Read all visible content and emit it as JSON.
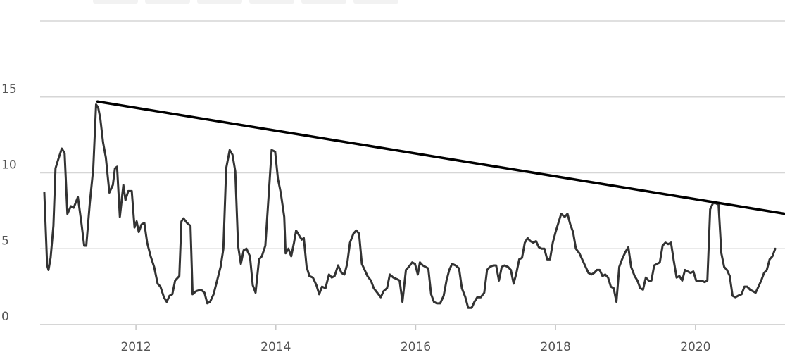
{
  "chart_data": {
    "type": "line",
    "x": [
      2010.69,
      2010.73,
      2010.75,
      2010.78,
      2010.82,
      2010.85,
      2010.89,
      2010.94,
      2010.98,
      2011.02,
      2011.07,
      2011.11,
      2011.17,
      2011.22,
      2011.26,
      2011.29,
      2011.34,
      2011.39,
      2011.43,
      2011.46,
      2011.49,
      2011.53,
      2011.57,
      2011.62,
      2011.67,
      2011.7,
      2011.73,
      2011.77,
      2011.82,
      2011.85,
      2011.89,
      2011.94,
      2011.98,
      2012.01,
      2012.04,
      2012.08,
      2012.12,
      2012.16,
      2012.21,
      2012.26,
      2012.31,
      2012.35,
      2012.4,
      2012.44,
      2012.48,
      2012.52,
      2012.56,
      2012.62,
      2012.65,
      2012.68,
      2012.73,
      2012.78,
      2012.81,
      2012.86,
      2012.93,
      2012.98,
      2013.02,
      2013.06,
      2013.11,
      2013.16,
      2013.21,
      2013.25,
      2013.29,
      2013.34,
      2013.38,
      2013.42,
      2013.46,
      2013.5,
      2013.54,
      2013.58,
      2013.63,
      2013.67,
      2013.71,
      2013.76,
      2013.8,
      2013.85,
      2013.89,
      2013.94,
      2013.99,
      2014.03,
      2014.07,
      2014.12,
      2014.14,
      2014.18,
      2014.22,
      2014.26,
      2014.29,
      2014.33,
      2014.37,
      2014.4,
      2014.44,
      2014.48,
      2014.53,
      2014.58,
      2014.62,
      2014.66,
      2014.71,
      2014.76,
      2014.8,
      2014.84,
      2014.89,
      2014.94,
      2014.98,
      2015.02,
      2015.06,
      2015.11,
      2015.15,
      2015.19,
      2015.23,
      2015.27,
      2015.31,
      2015.36,
      2015.4,
      2015.45,
      2015.5,
      2015.54,
      2015.59,
      2015.63,
      2015.68,
      2015.73,
      2015.77,
      2015.81,
      2015.86,
      2015.9,
      2015.95,
      2015.99,
      2016.03,
      2016.06,
      2016.1,
      2016.14,
      2016.18,
      2016.22,
      2016.26,
      2016.3,
      2016.35,
      2016.4,
      2016.44,
      2016.48,
      2016.52,
      2016.57,
      2016.62,
      2016.66,
      2016.71,
      2016.75,
      2016.8,
      2016.84,
      2016.88,
      2016.93,
      2016.98,
      2017.02,
      2017.06,
      2017.11,
      2017.15,
      2017.19,
      2017.23,
      2017.27,
      2017.32,
      2017.36,
      2017.4,
      2017.44,
      2017.48,
      2017.52,
      2017.56,
      2017.6,
      2017.64,
      2017.68,
      2017.72,
      2017.76,
      2017.8,
      2017.84,
      2017.88,
      2017.92,
      2017.96,
      2018.0,
      2018.04,
      2018.08,
      2018.13,
      2018.17,
      2018.21,
      2018.25,
      2018.29,
      2018.34,
      2018.38,
      2018.42,
      2018.47,
      2018.51,
      2018.55,
      2018.59,
      2018.63,
      2018.67,
      2018.71,
      2018.75,
      2018.79,
      2018.83,
      2018.87,
      2018.91,
      2018.95,
      2019.0,
      2019.04,
      2019.08,
      2019.13,
      2019.17,
      2019.21,
      2019.25,
      2019.29,
      2019.33,
      2019.37,
      2019.41,
      2019.45,
      2019.49,
      2019.53,
      2019.57,
      2019.61,
      2019.65,
      2019.69,
      2019.73,
      2019.77,
      2019.81,
      2019.85,
      2019.89,
      2019.93,
      2019.97,
      2020.01,
      2020.05,
      2020.09,
      2020.13,
      2020.17,
      2020.21,
      2020.25,
      2020.29,
      2020.33,
      2020.37,
      2020.41,
      2020.45,
      2020.49,
      2020.53,
      2020.57,
      2020.61,
      2020.66,
      2020.7,
      2020.74,
      2020.78,
      2020.82,
      2020.86,
      2020.9,
      2020.94,
      2020.98,
      2021.02,
      2021.06,
      2021.1,
      2021.14
    ],
    "values": [
      8.7,
      3.9,
      3.6,
      4.4,
      6.5,
      10.3,
      10.9,
      11.6,
      11.3,
      7.3,
      7.8,
      7.7,
      8.4,
      6.7,
      5.2,
      5.2,
      8.0,
      10.3,
      14.5,
      14.3,
      13.6,
      12.0,
      11.0,
      8.7,
      9.2,
      10.3,
      10.4,
      7.1,
      9.2,
      8.2,
      8.8,
      8.8,
      6.4,
      6.8,
      6.1,
      6.6,
      6.7,
      5.4,
      4.5,
      3.8,
      2.7,
      2.5,
      1.8,
      1.5,
      1.9,
      2.0,
      2.9,
      3.2,
      6.8,
      7.0,
      6.7,
      6.5,
      2.0,
      2.2,
      2.3,
      2.1,
      1.4,
      1.5,
      2.0,
      2.9,
      3.8,
      5.0,
      10.3,
      11.5,
      11.2,
      10.1,
      5.2,
      4.0,
      4.9,
      5.0,
      4.5,
      2.6,
      2.1,
      4.3,
      4.5,
      5.2,
      8.0,
      11.5,
      11.4,
      9.6,
      8.7,
      7.1,
      4.7,
      5.0,
      4.5,
      5.4,
      6.2,
      5.9,
      5.6,
      5.7,
      3.8,
      3.2,
      3.1,
      2.6,
      2.0,
      2.5,
      2.4,
      3.3,
      3.1,
      3.2,
      3.9,
      3.4,
      3.3,
      4.0,
      5.4,
      6.0,
      6.2,
      6.0,
      4.0,
      3.6,
      3.2,
      2.9,
      2.4,
      2.1,
      1.8,
      2.2,
      2.4,
      3.3,
      3.1,
      3.0,
      2.9,
      1.5,
      3.6,
      3.8,
      4.1,
      4.0,
      3.3,
      4.1,
      3.9,
      3.8,
      3.7,
      2.0,
      1.5,
      1.4,
      1.4,
      1.9,
      2.9,
      3.6,
      4.0,
      3.9,
      3.7,
      2.4,
      1.8,
      1.1,
      1.1,
      1.5,
      1.8,
      1.8,
      2.1,
      3.6,
      3.8,
      3.9,
      3.9,
      2.9,
      3.8,
      3.9,
      3.8,
      3.6,
      2.7,
      3.4,
      4.3,
      4.4,
      5.4,
      5.7,
      5.5,
      5.4,
      5.5,
      5.1,
      5.0,
      5.0,
      4.3,
      4.3,
      5.4,
      6.1,
      6.7,
      7.3,
      7.1,
      7.3,
      6.6,
      6.1,
      5.0,
      4.7,
      4.3,
      3.9,
      3.4,
      3.3,
      3.4,
      3.6,
      3.6,
      3.2,
      3.3,
      3.1,
      2.5,
      2.4,
      1.5,
      3.8,
      4.3,
      4.8,
      5.1,
      3.8,
      3.2,
      2.9,
      2.4,
      2.3,
      3.1,
      2.9,
      2.9,
      3.9,
      4.0,
      4.1,
      5.2,
      5.4,
      5.3,
      5.4,
      4.2,
      3.1,
      3.2,
      2.9,
      3.6,
      3.5,
      3.4,
      3.5,
      2.9,
      2.9,
      2.9,
      2.8,
      2.9,
      7.6,
      8.0,
      8.0,
      7.9,
      4.7,
      3.8,
      3.6,
      3.2,
      1.9,
      1.8,
      1.9,
      2.0,
      2.5,
      2.5,
      2.3,
      2.2,
      2.1,
      2.5,
      2.9,
      3.4,
      3.6,
      4.3,
      4.5,
      5.0
    ],
    "color": "#333333",
    "trendline": {
      "x": [
        2011.45,
        2021.28
      ],
      "values": [
        14.7,
        7.3
      ],
      "color": "#000000"
    },
    "xlim": [
      2010.63,
      2021.28
    ],
    "xticks": [
      2012,
      2014,
      2016,
      2018,
      2020
    ],
    "ylim": [
      0,
      20
    ],
    "yticks": [
      0,
      5,
      10,
      15
    ],
    "grid": true
  }
}
